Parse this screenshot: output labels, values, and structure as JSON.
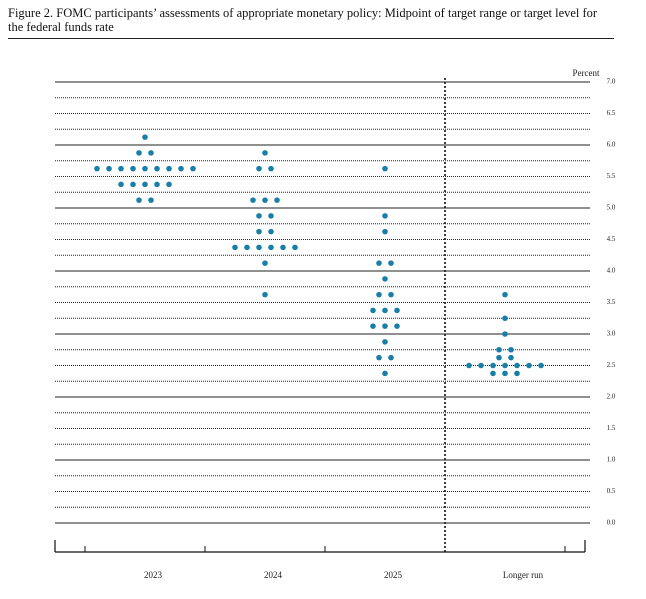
{
  "chart_data": {
    "type": "dot",
    "title": "Figure 2.  FOMC participants’ assessments of appropriate monetary policy: Midpoint of target range or target level for the federal funds rate",
    "y_label": "Percent",
    "categories": [
      "2023",
      "2024",
      "2025",
      "Longer run"
    ],
    "color": "#1a7fa8",
    "values": [
      [
        6.125,
        5.875,
        5.875,
        5.625,
        5.625,
        5.625,
        5.625,
        5.625,
        5.625,
        5.625,
        5.625,
        5.625,
        5.375,
        5.375,
        5.375,
        5.375,
        5.375,
        5.125,
        5.125
      ],
      [
        5.875,
        5.625,
        5.625,
        5.125,
        5.125,
        5.125,
        4.875,
        4.875,
        4.625,
        4.625,
        4.375,
        4.375,
        4.375,
        4.375,
        4.375,
        4.375,
        4.125,
        3.625
      ],
      [
        5.625,
        4.875,
        4.625,
        4.125,
        4.125,
        3.875,
        3.625,
        3.625,
        3.375,
        3.375,
        3.375,
        3.125,
        3.125,
        3.125,
        2.875,
        2.625,
        2.625,
        2.375
      ],
      [
        3.625,
        3.25,
        3.0,
        2.75,
        2.75,
        2.625,
        2.625,
        2.5,
        2.5,
        2.5,
        2.5,
        2.5,
        2.5,
        2.5,
        2.375,
        2.375,
        2.375
      ]
    ],
    "ylim": [
      0,
      7
    ],
    "yticks": [
      {
        "value": 0,
        "label": "0.0"
      },
      {
        "value": 0.5,
        "label": "0.5"
      },
      {
        "value": 1,
        "label": "1.0"
      },
      {
        "value": 1.5,
        "label": "1.5"
      },
      {
        "value": 2,
        "label": "2.0"
      },
      {
        "value": 2.5,
        "label": "2.5"
      },
      {
        "value": 3,
        "label": "3.0"
      },
      {
        "value": 3.5,
        "label": "3.5"
      },
      {
        "value": 4,
        "label": "4.0"
      },
      {
        "value": 4.5,
        "label": "4.5"
      },
      {
        "value": 5,
        "label": "5.0"
      },
      {
        "value": 5.5,
        "label": "5.5"
      },
      {
        "value": 6,
        "label": "6.0"
      },
      {
        "value": 6.5,
        "label": "6.5"
      },
      {
        "value": 7,
        "label": "7.0"
      }
    ],
    "grid": true
  }
}
